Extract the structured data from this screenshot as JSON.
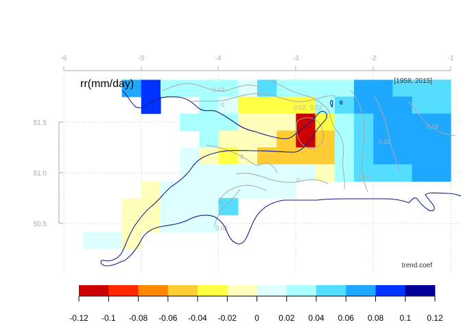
{
  "map": {
    "title": "rr(mm/day)",
    "period": "[1958, 2015]",
    "field_name": "trend.coef",
    "lon_ticks": [
      "-6",
      "-5",
      "-4",
      "-3",
      "-2",
      "-1"
    ],
    "lat_ticks": [
      "51.5",
      "51.0",
      "50.5"
    ],
    "contour_levels": [
      "0.02",
      "0",
      "0.02",
      "0.02",
      "0",
      "0",
      "0.02",
      "0.04",
      "0.06",
      "0.02"
    ]
  },
  "colorbar": {
    "labels": [
      "-0.12",
      "-0.1",
      "-0.08",
      "-0.06",
      "-0.04",
      "-0.02",
      "0",
      "0.02",
      "0.04",
      "0.06",
      "0.08",
      "0.1",
      "0.12"
    ],
    "colors": [
      "#cc0000",
      "#ff2a00",
      "#ff8800",
      "#ffcc33",
      "#ffff44",
      "#ffffbb",
      "#ddffff",
      "#aaffff",
      "#55ddff",
      "#1fa8ff",
      "#0033ff",
      "#000099"
    ],
    "color_names": [
      "dark-red",
      "red",
      "orange",
      "light-orange",
      "yellow",
      "pale-yellow",
      "pale-cyan",
      "light-cyan",
      "sky-blue",
      "blue",
      "strong-blue",
      "navy"
    ]
  },
  "chart_data": {
    "type": "heatmap",
    "variable": "rr(mm/day)",
    "statistic": "trend.coef",
    "period": "[1958, 2015]",
    "xlim": [
      -6,
      -1
    ],
    "ylim": [
      50.1,
      51.95
    ],
    "grid_step": [
      0.25,
      0.1667
    ],
    "levels": [
      -0.12,
      -0.1,
      -0.08,
      -0.06,
      -0.04,
      -0.02,
      0,
      0.02,
      0.04,
      0.06,
      0.08,
      0.1,
      0.12
    ],
    "cells": [
      {
        "lon": -5.125,
        "lat": 51.833,
        "value": 0.07
      },
      {
        "lon": -4.875,
        "lat": 51.833,
        "value": 0.09
      },
      {
        "lon": -4.625,
        "lat": 51.833,
        "value": 0.03
      },
      {
        "lon": -4.375,
        "lat": 51.833,
        "value": 0.03
      },
      {
        "lon": -4.125,
        "lat": 51.833,
        "value": 0.03
      },
      {
        "lon": -3.875,
        "lat": 51.833,
        "value": 0.03
      },
      {
        "lon": -3.625,
        "lat": 51.833,
        "value": 0.01
      },
      {
        "lon": -3.375,
        "lat": 51.833,
        "value": 0.05
      },
      {
        "lon": -3.125,
        "lat": 51.833,
        "value": 0.03
      },
      {
        "lon": -2.875,
        "lat": 51.833,
        "value": 0.03
      },
      {
        "lon": -2.625,
        "lat": 51.833,
        "value": 0.03
      },
      {
        "lon": -2.375,
        "lat": 51.833,
        "value": 0.03
      },
      {
        "lon": -2.125,
        "lat": 51.833,
        "value": 0.07
      },
      {
        "lon": -1.875,
        "lat": 51.833,
        "value": 0.07
      },
      {
        "lon": -1.625,
        "lat": 51.833,
        "value": 0.05
      },
      {
        "lon": -1.375,
        "lat": 51.833,
        "value": 0.05
      },
      {
        "lon": -1.125,
        "lat": 51.833,
        "value": 0.05
      },
      {
        "lon": -4.875,
        "lat": 51.667,
        "value": 0.09
      },
      {
        "lon": -4.125,
        "lat": 51.667,
        "value": 0.03
      },
      {
        "lon": -3.875,
        "lat": 51.667,
        "value": 0.01
      },
      {
        "lon": -3.625,
        "lat": 51.667,
        "value": -0.03
      },
      {
        "lon": -3.375,
        "lat": 51.667,
        "value": -0.03
      },
      {
        "lon": -3.125,
        "lat": 51.667,
        "value": -0.03
      },
      {
        "lon": -2.875,
        "lat": 51.667,
        "value": -0.03
      },
      {
        "lon": -2.625,
        "lat": 51.667,
        "value": 0.03
      },
      {
        "lon": -2.375,
        "lat": 51.667,
        "value": 0.05
      },
      {
        "lon": -2.125,
        "lat": 51.667,
        "value": 0.07
      },
      {
        "lon": -1.875,
        "lat": 51.667,
        "value": 0.07
      },
      {
        "lon": -1.625,
        "lat": 51.667,
        "value": 0.07
      },
      {
        "lon": -1.375,
        "lat": 51.667,
        "value": 0.05
      },
      {
        "lon": -1.125,
        "lat": 51.667,
        "value": 0.05
      },
      {
        "lon": -4.375,
        "lat": 51.5,
        "value": 0.03
      },
      {
        "lon": -4.125,
        "lat": 51.5,
        "value": 0.03
      },
      {
        "lon": -3.875,
        "lat": 51.5,
        "value": 0.03
      },
      {
        "lon": -3.625,
        "lat": 51.5,
        "value": -0.01
      },
      {
        "lon": -3.375,
        "lat": 51.5,
        "value": -0.01
      },
      {
        "lon": -3.125,
        "lat": 51.5,
        "value": -0.01
      },
      {
        "lon": -2.875,
        "lat": 51.5,
        "value": -0.11
      },
      {
        "lon": -2.625,
        "lat": 51.5,
        "value": -0.03
      },
      {
        "lon": -2.375,
        "lat": 51.5,
        "value": 0.03
      },
      {
        "lon": -2.125,
        "lat": 51.5,
        "value": 0.05
      },
      {
        "lon": -1.875,
        "lat": 51.5,
        "value": 0.07
      },
      {
        "lon": -1.625,
        "lat": 51.5,
        "value": 0.07
      },
      {
        "lon": -1.375,
        "lat": 51.5,
        "value": 0.07
      },
      {
        "lon": -1.125,
        "lat": 51.5,
        "value": 0.07
      },
      {
        "lon": -4.125,
        "lat": 51.333,
        "value": 0.03
      },
      {
        "lon": -3.875,
        "lat": 51.333,
        "value": -0.01
      },
      {
        "lon": -3.625,
        "lat": 51.333,
        "value": -0.01
      },
      {
        "lon": -3.375,
        "lat": 51.333,
        "value": -0.01
      },
      {
        "lon": -3.125,
        "lat": 51.333,
        "value": -0.05
      },
      {
        "lon": -2.875,
        "lat": 51.333,
        "value": -0.11
      },
      {
        "lon": -2.625,
        "lat": 51.333,
        "value": -0.05
      },
      {
        "lon": -2.375,
        "lat": 51.333,
        "value": 0.03
      },
      {
        "lon": -2.125,
        "lat": 51.333,
        "value": 0.05
      },
      {
        "lon": -1.875,
        "lat": 51.333,
        "value": 0.07
      },
      {
        "lon": -1.625,
        "lat": 51.333,
        "value": 0.07
      },
      {
        "lon": -1.375,
        "lat": 51.333,
        "value": 0.07
      },
      {
        "lon": -1.125,
        "lat": 51.333,
        "value": 0.07
      },
      {
        "lon": -4.375,
        "lat": 51.167,
        "value": 0.01
      },
      {
        "lon": -4.125,
        "lat": 51.167,
        "value": -0.01
      },
      {
        "lon": -3.875,
        "lat": 51.167,
        "value": -0.03
      },
      {
        "lon": -3.625,
        "lat": 51.167,
        "value": -0.01
      },
      {
        "lon": -3.375,
        "lat": 51.167,
        "value": -0.05
      },
      {
        "lon": -3.125,
        "lat": 51.167,
        "value": -0.05
      },
      {
        "lon": -2.875,
        "lat": 51.167,
        "value": -0.05
      },
      {
        "lon": -2.625,
        "lat": 51.167,
        "value": -0.05
      },
      {
        "lon": -2.375,
        "lat": 51.167,
        "value": 0.03
      },
      {
        "lon": -2.125,
        "lat": 51.167,
        "value": 0.05
      },
      {
        "lon": -1.875,
        "lat": 51.167,
        "value": 0.07
      },
      {
        "lon": -1.625,
        "lat": 51.167,
        "value": 0.07
      },
      {
        "lon": -1.375,
        "lat": 51.167,
        "value": 0.07
      },
      {
        "lon": -1.125,
        "lat": 51.167,
        "value": 0.07
      },
      {
        "lon": -4.375,
        "lat": 51.0,
        "value": 0.01
      },
      {
        "lon": -4.125,
        "lat": 51.0,
        "value": 0.01
      },
      {
        "lon": -3.875,
        "lat": 51.0,
        "value": 0.01
      },
      {
        "lon": -3.625,
        "lat": 51.0,
        "value": 0.01
      },
      {
        "lon": -3.375,
        "lat": 51.0,
        "value": 0.01
      },
      {
        "lon": -3.125,
        "lat": 51.0,
        "value": 0.01
      },
      {
        "lon": -2.875,
        "lat": 51.0,
        "value": 0.01
      },
      {
        "lon": -2.625,
        "lat": 51.0,
        "value": -0.01
      },
      {
        "lon": -2.375,
        "lat": 51.0,
        "value": 0.03
      },
      {
        "lon": -2.125,
        "lat": 51.0,
        "value": 0.05
      },
      {
        "lon": -1.875,
        "lat": 51.0,
        "value": 0.05
      },
      {
        "lon": -1.625,
        "lat": 51.0,
        "value": 0.05
      },
      {
        "lon": -1.375,
        "lat": 51.0,
        "value": 0.07
      },
      {
        "lon": -1.125,
        "lat": 51.0,
        "value": 0.07
      },
      {
        "lon": -4.875,
        "lat": 50.833,
        "value": -0.01
      },
      {
        "lon": -4.625,
        "lat": 50.833,
        "value": 0.01
      },
      {
        "lon": -4.375,
        "lat": 50.833,
        "value": 0.01
      },
      {
        "lon": -4.125,
        "lat": 50.833,
        "value": 0.01
      },
      {
        "lon": -3.875,
        "lat": 50.833,
        "value": 0.01
      },
      {
        "lon": -3.625,
        "lat": 50.833,
        "value": 0.01
      },
      {
        "lon": -3.375,
        "lat": 50.833,
        "value": 0.01
      },
      {
        "lon": -3.125,
        "lat": 50.833,
        "value": 0.01
      },
      {
        "lon": -5.125,
        "lat": 50.667,
        "value": -0.01
      },
      {
        "lon": -4.875,
        "lat": 50.667,
        "value": -0.01
      },
      {
        "lon": -4.625,
        "lat": 50.667,
        "value": 0.01
      },
      {
        "lon": -4.375,
        "lat": 50.667,
        "value": 0.01
      },
      {
        "lon": -4.125,
        "lat": 50.667,
        "value": 0.01
      },
      {
        "lon": -3.875,
        "lat": 50.667,
        "value": 0.05
      },
      {
        "lon": -5.125,
        "lat": 50.5,
        "value": -0.01
      },
      {
        "lon": -4.875,
        "lat": 50.5,
        "value": -0.01
      },
      {
        "lon": -4.625,
        "lat": 50.5,
        "value": 0.01
      },
      {
        "lon": -4.375,
        "lat": 50.5,
        "value": 0.01
      },
      {
        "lon": -4.125,
        "lat": 50.5,
        "value": 0.01
      },
      {
        "lon": -5.625,
        "lat": 50.333,
        "value": 0.01
      },
      {
        "lon": -5.375,
        "lat": 50.333,
        "value": 0.01
      },
      {
        "lon": -5.125,
        "lat": 50.333,
        "value": -0.01
      }
    ]
  }
}
